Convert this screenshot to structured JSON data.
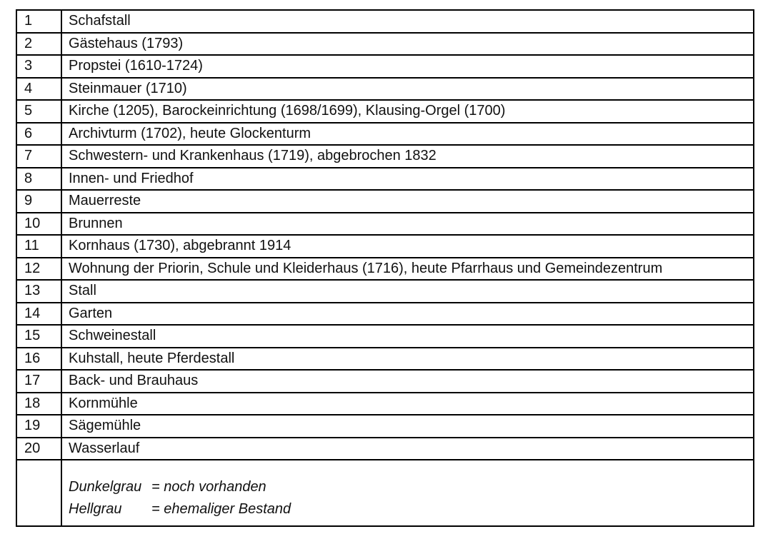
{
  "colors": {
    "border": "#000000",
    "text": "#111111",
    "background": "#ffffff"
  },
  "table": {
    "rows": [
      {
        "num": "1",
        "text": "Schafstall"
      },
      {
        "num": "2",
        "text": "Gästehaus (1793)"
      },
      {
        "num": "3",
        "text": "Propstei (1610-1724)"
      },
      {
        "num": "4",
        "text": "Steinmauer (1710)"
      },
      {
        "num": "5",
        "text": "Kirche (1205), Barockeinrichtung (1698/1699), Klausing-Orgel (1700)"
      },
      {
        "num": "6",
        "text": "Archivturm (1702), heute Glockenturm"
      },
      {
        "num": "7",
        "text": "Schwestern- und Krankenhaus (1719), abgebrochen 1832"
      },
      {
        "num": "8",
        "text": "Innen- und Friedhof"
      },
      {
        "num": "9",
        "text": "Mauerreste"
      },
      {
        "num": "10",
        "text": "Brunnen"
      },
      {
        "num": "11",
        "text": "Kornhaus (1730), abgebrannt 1914"
      },
      {
        "num": "12",
        "text": "Wohnung der Priorin, Schule und Kleiderhaus (1716), heute Pfarrhaus und Gemeindezentrum"
      },
      {
        "num": "13",
        "text": "Stall"
      },
      {
        "num": "14",
        "text": "Garten"
      },
      {
        "num": "15",
        "text": "Schweinestall"
      },
      {
        "num": "16",
        "text": "Kuhstall, heute Pferdestall"
      },
      {
        "num": "17",
        "text": "Back- und Brauhaus"
      },
      {
        "num": "18",
        "text": "Kornmühle"
      },
      {
        "num": "19",
        "text": "Sägemühle"
      },
      {
        "num": "20",
        "text": "Wasserlauf"
      }
    ]
  },
  "legend": {
    "entries": [
      {
        "term": "Dunkelgrau",
        "definition": "= noch vorhanden"
      },
      {
        "term": "Hellgrau",
        "definition": "= ehemaliger Bestand"
      }
    ]
  }
}
